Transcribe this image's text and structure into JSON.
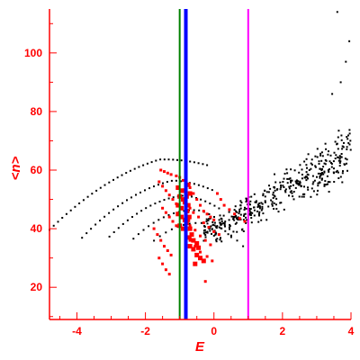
{
  "chart_data": {
    "type": "scatter",
    "title": "",
    "xlabel": "E",
    "ylabel": "<n>",
    "xlim": [
      -4.8,
      4.0
    ],
    "ylim": [
      9,
      115
    ],
    "xticks": [
      -4,
      -2,
      0,
      2,
      4
    ],
    "yticks": [
      20,
      40,
      60,
      80,
      100
    ],
    "grid": false,
    "axis_color": "#ff0000",
    "vertical_lines": [
      {
        "x": -1.0,
        "color": "#008000"
      },
      {
        "x": -0.82,
        "color": "#0000ff"
      },
      {
        "x": 1.0,
        "color": "#ff00ff"
      }
    ],
    "black_band_curves": [
      {
        "x0": -4.8,
        "a": 66,
        "b": 4.6,
        "c": 1.2,
        "n": 38
      },
      {
        "x0": -3.85,
        "a": 60,
        "b": 3.8,
        "c": 1.05,
        "n": 30
      },
      {
        "x0": -3.05,
        "a": 56,
        "b": 3.2,
        "c": 0.85,
        "n": 25
      },
      {
        "x0": -2.35,
        "a": 52,
        "b": 2.8,
        "c": 0.7,
        "n": 20
      },
      {
        "x0": -1.75,
        "a": 48,
        "b": 2.6,
        "c": 0.55,
        "n": 16
      }
    ],
    "cloud_points": {
      "color": "#000000",
      "count": 420,
      "x_range": [
        -0.3,
        4.0
      ],
      "trend": {
        "slope": 8.0,
        "intercept": 40.5,
        "spread": 9
      }
    },
    "red_small_points": [
      [
        -1.55,
        60
      ],
      [
        -1.45,
        59.5
      ],
      [
        -1.35,
        59
      ],
      [
        -1.25,
        58.5
      ],
      [
        -1.1,
        58
      ],
      [
        -1.0,
        57.5
      ],
      [
        -0.9,
        56.5
      ],
      [
        -1.6,
        56
      ],
      [
        -1.5,
        54.5
      ],
      [
        -1.4,
        53
      ],
      [
        -1.3,
        51.5
      ],
      [
        -1.2,
        50
      ],
      [
        -1.1,
        48.5
      ],
      [
        -1.5,
        47
      ],
      [
        -1.4,
        45.5
      ],
      [
        -1.3,
        44
      ],
      [
        -1.2,
        42.5
      ],
      [
        -1.1,
        41
      ],
      [
        -1.75,
        40
      ],
      [
        -1.65,
        38
      ],
      [
        -1.55,
        36
      ],
      [
        -1.45,
        34
      ],
      [
        -1.35,
        32.5
      ],
      [
        -1.25,
        31
      ],
      [
        -1.6,
        30
      ],
      [
        -1.5,
        28
      ],
      [
        -1.4,
        26
      ],
      [
        -1.3,
        24.5
      ],
      [
        -0.7,
        54
      ],
      [
        -0.6,
        52
      ],
      [
        -0.5,
        50
      ],
      [
        -0.4,
        48
      ],
      [
        -0.3,
        46
      ],
      [
        -0.2,
        45
      ],
      [
        -0.1,
        44
      ],
      [
        0.0,
        43
      ],
      [
        -0.7,
        47
      ],
      [
        -0.6,
        45.5
      ],
      [
        -0.45,
        44
      ],
      [
        -0.3,
        42
      ],
      [
        -0.15,
        40.5
      ],
      [
        0.0,
        39
      ],
      [
        0.15,
        38
      ],
      [
        -0.7,
        41
      ],
      [
        -0.55,
        39.5
      ],
      [
        -0.4,
        37.5
      ],
      [
        -0.25,
        36
      ],
      [
        -0.1,
        34.5
      ],
      [
        -0.7,
        36
      ],
      [
        -0.55,
        34
      ],
      [
        -0.4,
        32
      ],
      [
        -0.2,
        30.5
      ],
      [
        -0.05,
        29
      ],
      [
        -0.25,
        22
      ],
      [
        0.1,
        52
      ],
      [
        0.2,
        50
      ],
      [
        0.3,
        48
      ],
      [
        0.45,
        46.5
      ],
      [
        0.6,
        45
      ],
      [
        0.75,
        43.5
      ],
      [
        0.9,
        42.5
      ]
    ],
    "red_large_points": [
      [
        -1.05,
        54
      ],
      [
        -0.95,
        53
      ],
      [
        -1.0,
        51
      ],
      [
        -0.9,
        50
      ],
      [
        -1.05,
        48
      ],
      [
        -0.95,
        47
      ],
      [
        -0.85,
        49
      ],
      [
        -1.05,
        45
      ],
      [
        -0.95,
        44
      ],
      [
        -0.85,
        43
      ],
      [
        -1.0,
        41
      ],
      [
        -0.9,
        40
      ],
      [
        -0.8,
        42
      ],
      [
        -0.75,
        55
      ],
      [
        -0.7,
        52
      ],
      [
        -0.75,
        48
      ],
      [
        -0.72,
        44
      ],
      [
        -0.7,
        40
      ],
      [
        -0.72,
        37
      ],
      [
        -0.7,
        34
      ],
      [
        -0.6,
        33
      ],
      [
        -0.5,
        31
      ],
      [
        -0.4,
        30
      ],
      [
        -0.3,
        29
      ],
      [
        -0.55,
        28
      ],
      [
        -0.65,
        38
      ],
      [
        -0.6,
        36
      ],
      [
        -0.5,
        35
      ],
      [
        -0.45,
        33.5
      ],
      [
        -0.85,
        53
      ],
      [
        -0.8,
        51
      ],
      [
        -0.78,
        46
      ],
      [
        -0.76,
        43
      ]
    ],
    "top_right_points": [
      [
        3.6,
        114
      ],
      [
        3.95,
        104
      ],
      [
        3.85,
        97
      ],
      [
        3.7,
        90
      ],
      [
        3.45,
        86
      ]
    ]
  }
}
